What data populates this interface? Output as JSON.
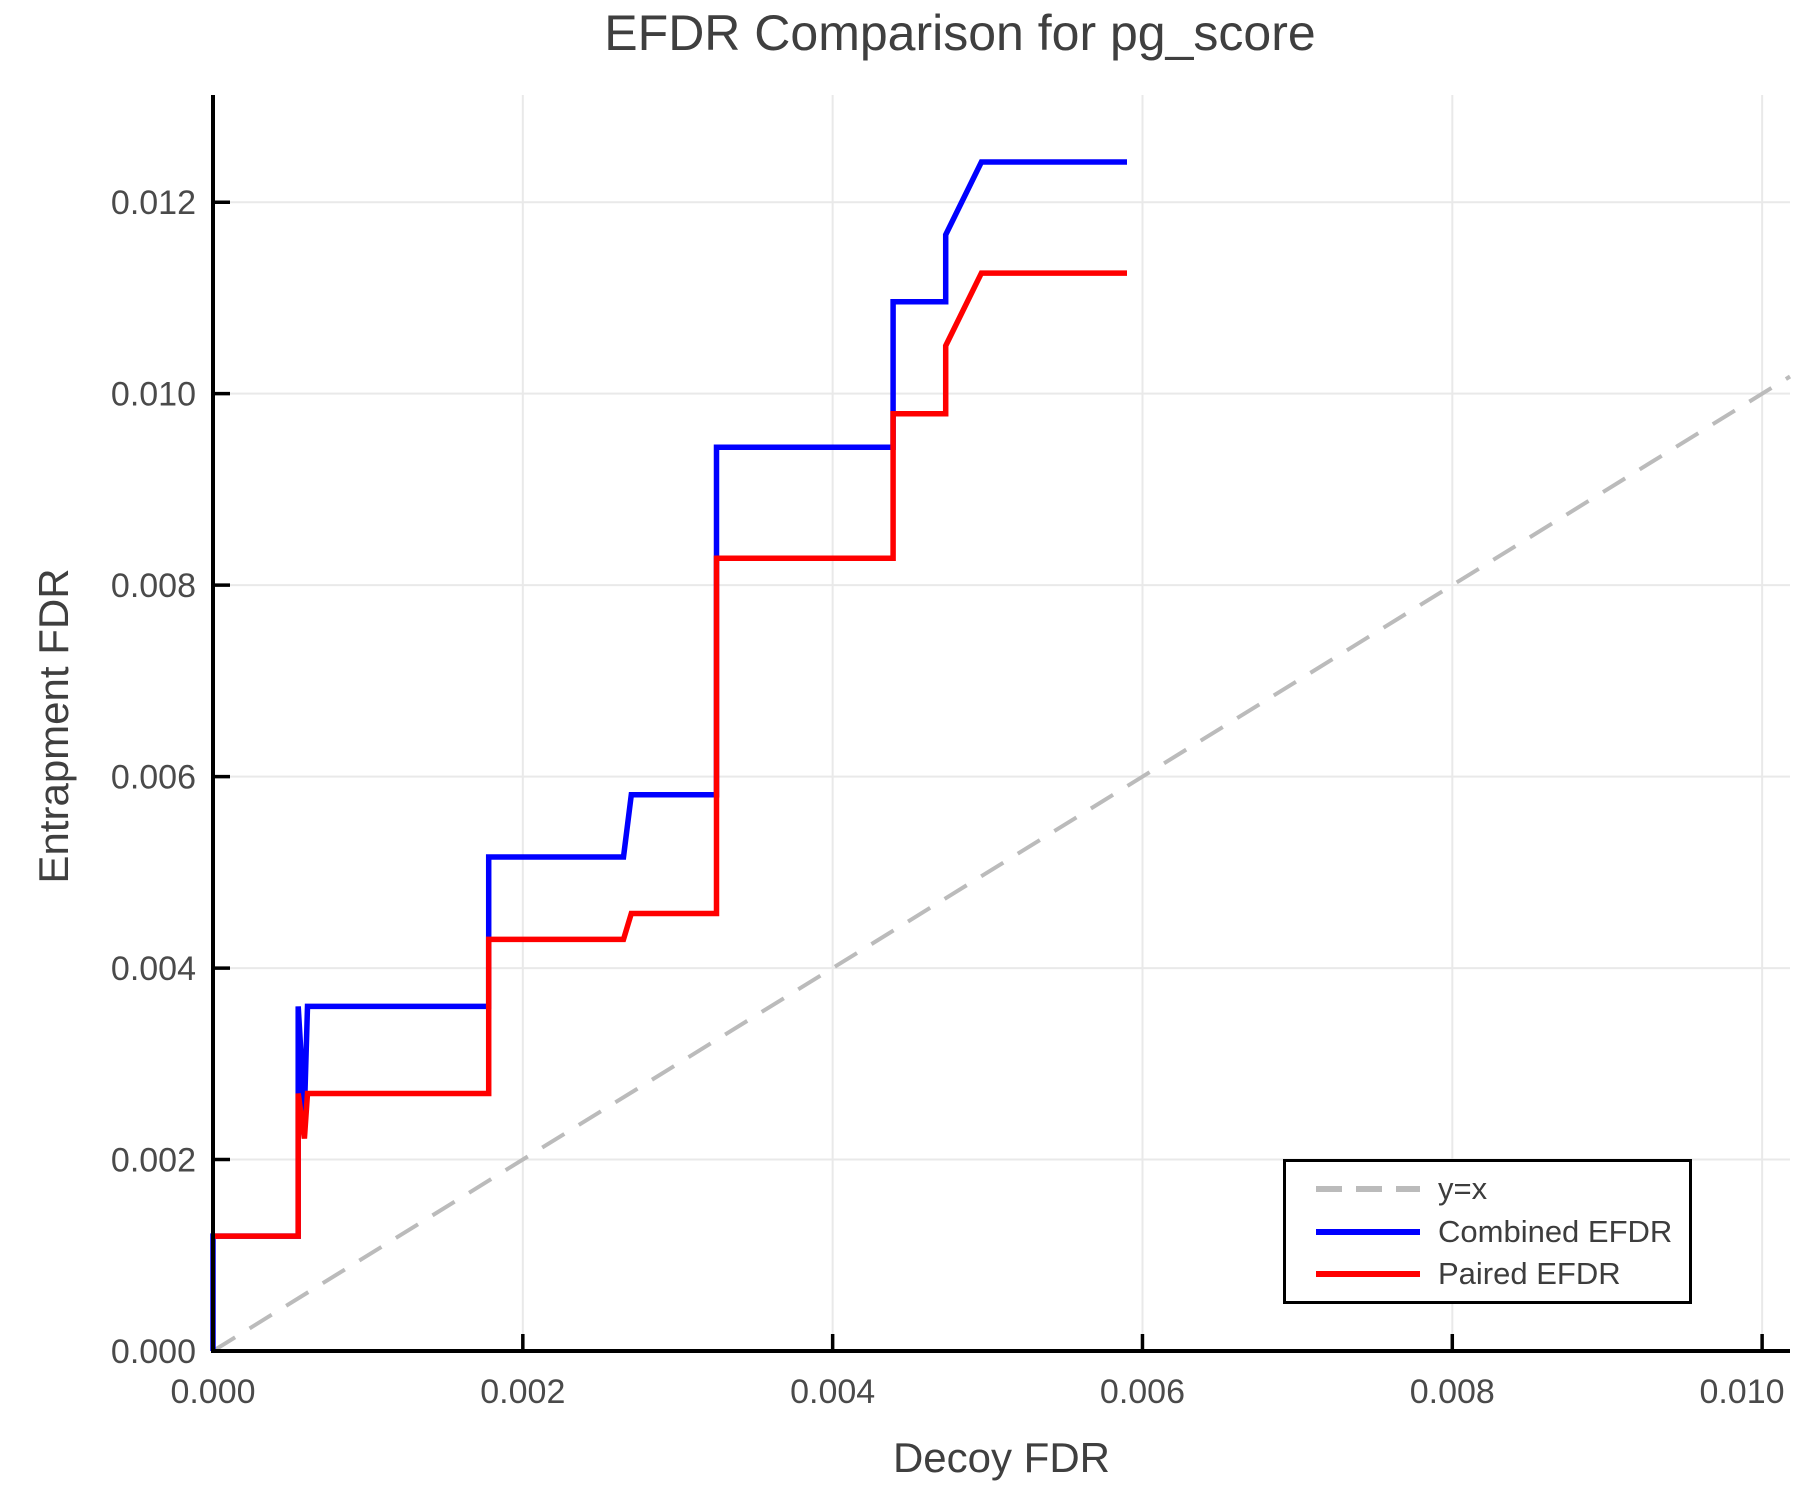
{
  "title": "EFDR Comparison for pg_score",
  "axes": {
    "x_label": "Decoy FDR",
    "y_label": "Entrapment FDR",
    "x_ticks": [
      {
        "v": 0.0,
        "label": "0.000"
      },
      {
        "v": 0.002,
        "label": "0.002"
      },
      {
        "v": 0.004,
        "label": "0.004"
      },
      {
        "v": 0.006,
        "label": "0.006"
      },
      {
        "v": 0.008,
        "label": "0.008"
      },
      {
        "v": 0.01,
        "label": "0.010"
      }
    ],
    "y_ticks": [
      {
        "v": 0.0,
        "label": "0.000"
      },
      {
        "v": 0.002,
        "label": "0.002"
      },
      {
        "v": 0.004,
        "label": "0.004"
      },
      {
        "v": 0.006,
        "label": "0.006"
      },
      {
        "v": 0.008,
        "label": "0.008"
      },
      {
        "v": 0.01,
        "label": "0.010"
      },
      {
        "v": 0.012,
        "label": "0.012"
      }
    ]
  },
  "colors": {
    "combined": "#0000ff",
    "paired": "#ff0000",
    "identity": "#bbbbbb",
    "grid": "#e9e9e9",
    "spine": "#000000",
    "text": "#4a4a4a"
  },
  "chart_data": {
    "type": "line",
    "title": "EFDR Comparison for pg_score",
    "xlabel": "Decoy FDR",
    "ylabel": "Entrapment FDR",
    "xlim": [
      0,
      0.01018
    ],
    "ylim": [
      0,
      0.01312
    ],
    "grid": true,
    "legend_position": "bottom-right",
    "series": [
      {
        "name": "y=x",
        "color": "#bbbbbb",
        "style": "dashed",
        "width": 4,
        "points": [
          [
            0,
            0
          ],
          [
            0.01018,
            0.01018
          ]
        ]
      },
      {
        "name": "Combined EFDR",
        "color": "#0000ff",
        "style": "solid",
        "width": 5.5,
        "points": [
          [
            0,
            0
          ],
          [
            0,
            0.0012
          ],
          [
            0.00055,
            0.0012
          ],
          [
            0.00055,
            0.0036
          ],
          [
            0.00059,
            0.0025
          ],
          [
            0.00061,
            0.0036
          ],
          [
            0.00178,
            0.0036
          ],
          [
            0.00178,
            0.00516
          ],
          [
            0.00265,
            0.00516
          ],
          [
            0.0027,
            0.00581
          ],
          [
            0.00325,
            0.00581
          ],
          [
            0.00325,
            0.00944
          ],
          [
            0.00439,
            0.00944
          ],
          [
            0.00439,
            0.01096
          ],
          [
            0.00473,
            0.01096
          ],
          [
            0.00473,
            0.01166
          ],
          [
            0.00496,
            0.01242
          ],
          [
            0.0059,
            0.01242
          ]
        ]
      },
      {
        "name": "Paired EFDR",
        "color": "#ff0000",
        "style": "solid",
        "width": 5.5,
        "points": [
          [
            0,
            0.0012
          ],
          [
            0.00055,
            0.0012
          ],
          [
            0.00055,
            0.00269
          ],
          [
            0.00059,
            0.00222
          ],
          [
            0.00061,
            0.00269
          ],
          [
            0.00178,
            0.00269
          ],
          [
            0.00178,
            0.0043
          ],
          [
            0.00265,
            0.0043
          ],
          [
            0.0027,
            0.00457
          ],
          [
            0.00325,
            0.00457
          ],
          [
            0.00325,
            0.00828
          ],
          [
            0.00439,
            0.00828
          ],
          [
            0.00439,
            0.00979
          ],
          [
            0.00473,
            0.00979
          ],
          [
            0.00473,
            0.0105
          ],
          [
            0.00496,
            0.01126
          ],
          [
            0.0059,
            0.01126
          ]
        ]
      }
    ]
  }
}
